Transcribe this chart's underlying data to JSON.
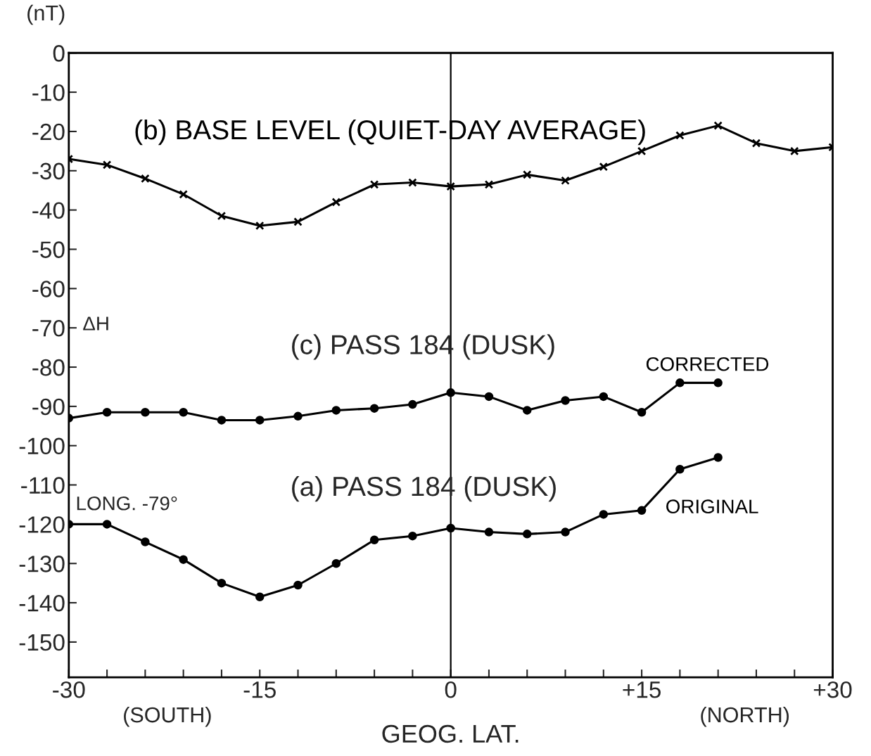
{
  "chart_data": {
    "type": "line",
    "xlabel": "GEOG. LAT.",
    "ylabel": "(nT)",
    "xlim": [
      -30,
      30
    ],
    "ylim": [
      -159,
      0
    ],
    "xticks": [
      {
        "value": -30,
        "label": "-30"
      },
      {
        "value": -27,
        "label": null
      },
      {
        "value": -24,
        "label": null
      },
      {
        "value": -21,
        "label": null
      },
      {
        "value": -18,
        "label": null
      },
      {
        "value": -15,
        "label": "-15"
      },
      {
        "value": -12,
        "label": null
      },
      {
        "value": -9,
        "label": null
      },
      {
        "value": -6,
        "label": null
      },
      {
        "value": -3,
        "label": null
      },
      {
        "value": 0,
        "label": "0"
      },
      {
        "value": 3,
        "label": null
      },
      {
        "value": 6,
        "label": null
      },
      {
        "value": 9,
        "label": null
      },
      {
        "value": 12,
        "label": null
      },
      {
        "value": 15,
        "label": "+15"
      },
      {
        "value": 18,
        "label": null
      },
      {
        "value": 21,
        "label": null
      },
      {
        "value": 24,
        "label": null
      },
      {
        "value": 27,
        "label": null
      },
      {
        "value": 30,
        "label": "+30"
      }
    ],
    "yticks": [
      0,
      -10,
      -20,
      -30,
      -40,
      -50,
      -60,
      -70,
      -80,
      -90,
      -100,
      -110,
      -120,
      -130,
      -140,
      -150
    ],
    "grid": false,
    "legend": false,
    "ref_lines": [
      {
        "axis": "x",
        "value": 0,
        "color": "#000000",
        "line_style": "solid"
      }
    ],
    "series": [
      {
        "name": "(b) BASE LEVEL (QUIET-DAY AVERAGE)",
        "color": "#000000",
        "marker": "cross",
        "x": [
          -30,
          -27,
          -24,
          -21,
          -18,
          -15,
          -12,
          -9,
          -6,
          -3,
          0,
          3,
          6,
          9,
          12,
          15,
          18,
          21,
          24,
          27,
          30
        ],
        "values": [
          -27,
          -28.5,
          -32,
          -36,
          -41.5,
          -44,
          -43,
          -38,
          -33.5,
          -33,
          -34,
          -33.5,
          -31,
          -32.5,
          -29,
          -25,
          -21,
          -18.5,
          -23,
          -25,
          -24
        ]
      },
      {
        "name": "CORRECTED",
        "color": "#000000",
        "marker": "circle",
        "x": [
          -30,
          -27,
          -24,
          -21,
          -18,
          -15,
          -12,
          -9,
          -6,
          -3,
          0,
          3,
          6,
          9,
          12,
          15,
          18,
          21
        ],
        "values": [
          -93,
          -91.5,
          -91.5,
          -91.5,
          -93.5,
          -93.5,
          -92.5,
          -91,
          -90.5,
          -89.5,
          -86.5,
          -87.5,
          -91,
          -88.5,
          -87.5,
          -91.5,
          -84,
          -84
        ]
      },
      {
        "name": "ORIGINAL",
        "color": "#000000",
        "marker": "circle",
        "x": [
          -30,
          -27,
          -24,
          -21,
          -18,
          -15,
          -12,
          -9,
          -6,
          -3,
          0,
          3,
          6,
          9,
          12,
          15,
          18,
          21
        ],
        "values": [
          -120,
          -120,
          -124.5,
          -129,
          -135,
          -138.5,
          -135.5,
          -130,
          -124,
          -123,
          -121,
          -122,
          -122.5,
          -122,
          -117.5,
          -116.5,
          -106,
          -103
        ]
      }
    ],
    "annotations": [
      "(c) PASS 184 (DUSK)",
      "(a) PASS 184 (DUSK)",
      "LONG. -79°",
      "ΔH",
      "(SOUTH)",
      "(NORTH)"
    ]
  }
}
